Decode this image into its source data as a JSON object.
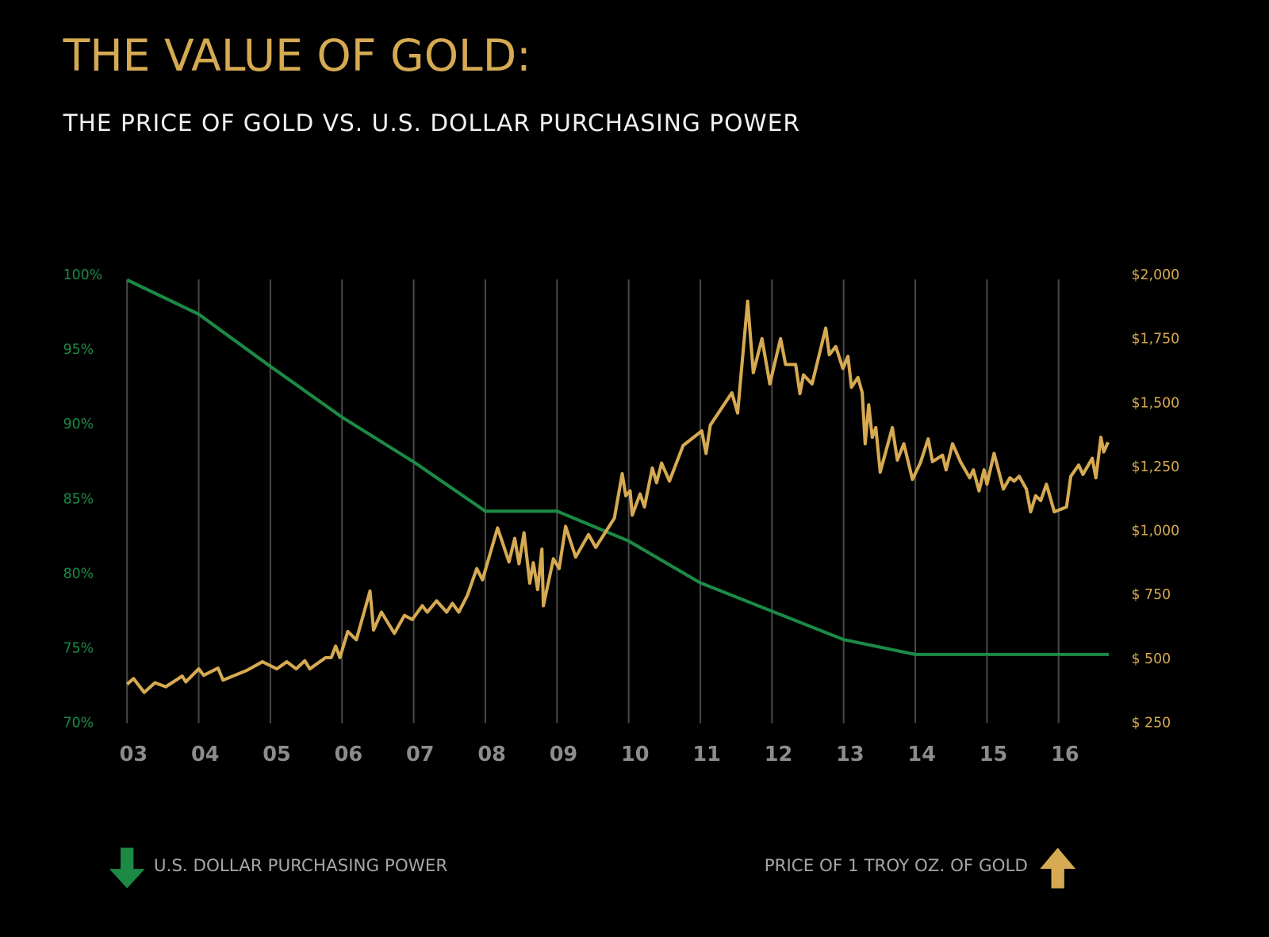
{
  "chart_data": {
    "type": "line",
    "title": "THE VALUE OF GOLD:",
    "subtitle": "THE PRICE OF GOLD VS. U.S. DOLLAR PURCHASING POWER",
    "ylabel": "U.S. DOLLAR PURCHASING POWER",
    "y2label": "PRICE OF 1 TROY OZ. OF GOLD",
    "xlim": [
      3,
      16.7
    ],
    "xticks": [
      {
        "value": 3,
        "label": "03"
      },
      {
        "value": 4,
        "label": "04"
      },
      {
        "value": 5,
        "label": "05"
      },
      {
        "value": 6,
        "label": "06"
      },
      {
        "value": 7,
        "label": "07"
      },
      {
        "value": 8,
        "label": "08"
      },
      {
        "value": 9,
        "label": "09"
      },
      {
        "value": 10,
        "label": "10"
      },
      {
        "value": 11,
        "label": "11"
      },
      {
        "value": 12,
        "label": "12"
      },
      {
        "value": 13,
        "label": "13"
      },
      {
        "value": 14,
        "label": "14"
      },
      {
        "value": 15,
        "label": "15"
      },
      {
        "value": 16,
        "label": "16"
      }
    ],
    "ylim": [
      70,
      100
    ],
    "yticks": [
      {
        "value": 70,
        "label": "70%"
      },
      {
        "value": 75,
        "label": "75%"
      },
      {
        "value": 80,
        "label": "80%"
      },
      {
        "value": 85,
        "label": "85%"
      },
      {
        "value": 90,
        "label": "90%"
      },
      {
        "value": 95,
        "label": "95%"
      },
      {
        "value": 100,
        "label": "100%"
      }
    ],
    "y2lim": [
      250,
      2000
    ],
    "y2ticks": [
      {
        "value": 250,
        "label": "$ 250"
      },
      {
        "value": 500,
        "label": "$ 500"
      },
      {
        "value": 750,
        "label": "$ 750"
      },
      {
        "value": 1000,
        "label": "$1,000"
      },
      {
        "value": 1250,
        "label": "$1,250"
      },
      {
        "value": 1500,
        "label": "$1,500"
      },
      {
        "value": 1750,
        "label": "$1,750"
      },
      {
        "value": 2000,
        "label": "$2,000"
      }
    ],
    "grid": true,
    "series": [
      {
        "name": "U.S. DOLLAR PURCHASING POWER",
        "color": "#1b8a45",
        "legend_marker": "down",
        "x": [
          3,
          4,
          5,
          6,
          7,
          8,
          9,
          10,
          11,
          12,
          13,
          14,
          15,
          16,
          16.7
        ],
        "values": [
          99.7,
          97.4,
          93.9,
          90.5,
          87.5,
          84.2,
          84.2,
          82.2,
          79.4,
          77.5,
          75.6,
          74.6,
          74.6,
          74.6,
          74.6
        ]
      },
      {
        "name": "PRICE OF 1 TROY OZ. OF GOLD",
        "color": "#d6aa52",
        "axis": "y2",
        "legend_marker": "up",
        "x": [
          3.0,
          3.09,
          3.24,
          3.39,
          3.54,
          3.77,
          3.82,
          4.0,
          4.07,
          4.27,
          4.34,
          4.67,
          4.89,
          5.09,
          5.23,
          5.36,
          5.48,
          5.55,
          5.77,
          5.85,
          5.91,
          5.97,
          6.08,
          6.2,
          6.39,
          6.44,
          6.55,
          6.73,
          6.87,
          6.98,
          7.12,
          7.19,
          7.32,
          7.46,
          7.54,
          7.63,
          7.75,
          7.88,
          7.96,
          8.17,
          8.33,
          8.41,
          8.47,
          8.54,
          8.62,
          8.67,
          8.73,
          8.79,
          8.81,
          8.95,
          9.03,
          9.12,
          9.26,
          9.44,
          9.54,
          9.8,
          9.91,
          9.96,
          10.02,
          10.05,
          10.16,
          10.22,
          10.33,
          10.39,
          10.46,
          10.57,
          10.76,
          11.02,
          11.08,
          11.14,
          11.44,
          11.52,
          11.66,
          11.74,
          11.86,
          11.97,
          12.12,
          12.19,
          12.33,
          12.39,
          12.44,
          12.56,
          12.75,
          12.8,
          12.89,
          12.99,
          13.06,
          13.11,
          13.2,
          13.26,
          13.3,
          13.35,
          13.4,
          13.45,
          13.51,
          13.68,
          13.75,
          13.84,
          13.96,
          14.07,
          14.18,
          14.24,
          14.38,
          14.43,
          14.52,
          14.63,
          14.76,
          14.81,
          14.89,
          14.96,
          15.0,
          15.1,
          15.23,
          15.32,
          15.38,
          15.45,
          15.55,
          15.61,
          15.68,
          15.75,
          15.83,
          15.94,
          16.11,
          16.17,
          16.28,
          16.34,
          16.47,
          16.52,
          16.59,
          16.63,
          16.69
        ],
        "values": [
          402,
          424,
          370,
          408,
          392,
          434,
          411,
          462,
          437,
          465,
          418,
          456,
          490,
          462,
          490,
          462,
          494,
          462,
          506,
          506,
          551,
          506,
          608,
          576,
          766,
          614,
          684,
          601,
          671,
          655,
          709,
          684,
          728,
          684,
          718,
          684,
          750,
          854,
          810,
          1013,
          880,
          972,
          873,
          994,
          797,
          877,
          772,
          930,
          709,
          892,
          854,
          1019,
          899,
          987,
          937,
          1051,
          1225,
          1139,
          1158,
          1063,
          1146,
          1095,
          1247,
          1190,
          1266,
          1196,
          1335,
          1392,
          1304,
          1415,
          1541,
          1462,
          1899,
          1620,
          1753,
          1576,
          1753,
          1652,
          1652,
          1538,
          1611,
          1576,
          1794,
          1690,
          1722,
          1636,
          1684,
          1563,
          1601,
          1541,
          1342,
          1494,
          1367,
          1405,
          1231,
          1405,
          1278,
          1342,
          1203,
          1266,
          1361,
          1272,
          1297,
          1240,
          1342,
          1272,
          1209,
          1240,
          1158,
          1240,
          1184,
          1304,
          1165,
          1209,
          1196,
          1215,
          1165,
          1076,
          1139,
          1120,
          1184,
          1076,
          1095,
          1215,
          1259,
          1222,
          1285,
          1209,
          1367,
          1310,
          1348
        ]
      }
    ]
  }
}
